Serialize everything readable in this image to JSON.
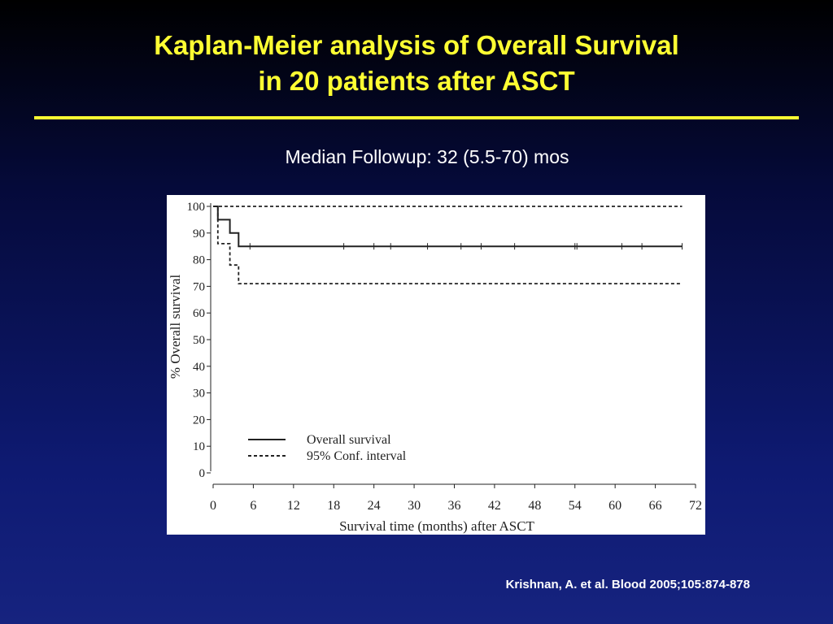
{
  "slide": {
    "title_line1": "Kaplan-Meier analysis of Overall Survival",
    "title_line2": "in 20 patients after ASCT",
    "subtitle": "Median Followup: 32 (5.5-70) mos",
    "citation": "Krishnan, A. et al. Blood 2005;105:874-878"
  },
  "colors": {
    "title": "#ffff33",
    "background_top": "#000000",
    "background_bottom": "#16237f",
    "plot_line": "#222222"
  },
  "chart_data": {
    "type": "line",
    "title": "",
    "xlabel": "Survival time (months) after ASCT",
    "ylabel": "% Overall  survival",
    "xlim": [
      0,
      72
    ],
    "ylim": [
      0,
      100
    ],
    "x_ticks": [
      0,
      6,
      12,
      18,
      24,
      30,
      36,
      42,
      48,
      54,
      60,
      66,
      72
    ],
    "y_ticks": [
      0,
      10,
      20,
      30,
      40,
      50,
      60,
      70,
      80,
      90,
      100
    ],
    "grid": false,
    "legend_position": "bottom-left",
    "series": [
      {
        "name": "Overall  survival",
        "style": "solid",
        "step": true,
        "points": [
          [
            0,
            100
          ],
          [
            0.7,
            100
          ],
          [
            0.7,
            95
          ],
          [
            2.5,
            95
          ],
          [
            2.5,
            90
          ],
          [
            3.8,
            90
          ],
          [
            3.8,
            85
          ],
          [
            70,
            85
          ]
        ],
        "censor_marks": [
          5.5,
          19.5,
          24,
          26.5,
          32,
          37,
          40,
          45,
          54,
          54.3,
          61,
          64,
          70
        ]
      },
      {
        "name": "95% Conf. interval",
        "style": "dashed",
        "step": true,
        "points": [
          [
            0,
            100
          ],
          [
            70,
            100
          ]
        ]
      },
      {
        "name": "",
        "style": "dashed",
        "step": true,
        "points": [
          [
            0,
            100
          ],
          [
            0.7,
            100
          ],
          [
            0.7,
            86
          ],
          [
            2.5,
            86
          ],
          [
            2.5,
            78
          ],
          [
            3.8,
            78
          ],
          [
            3.8,
            71
          ],
          [
            70,
            71
          ]
        ]
      }
    ]
  }
}
